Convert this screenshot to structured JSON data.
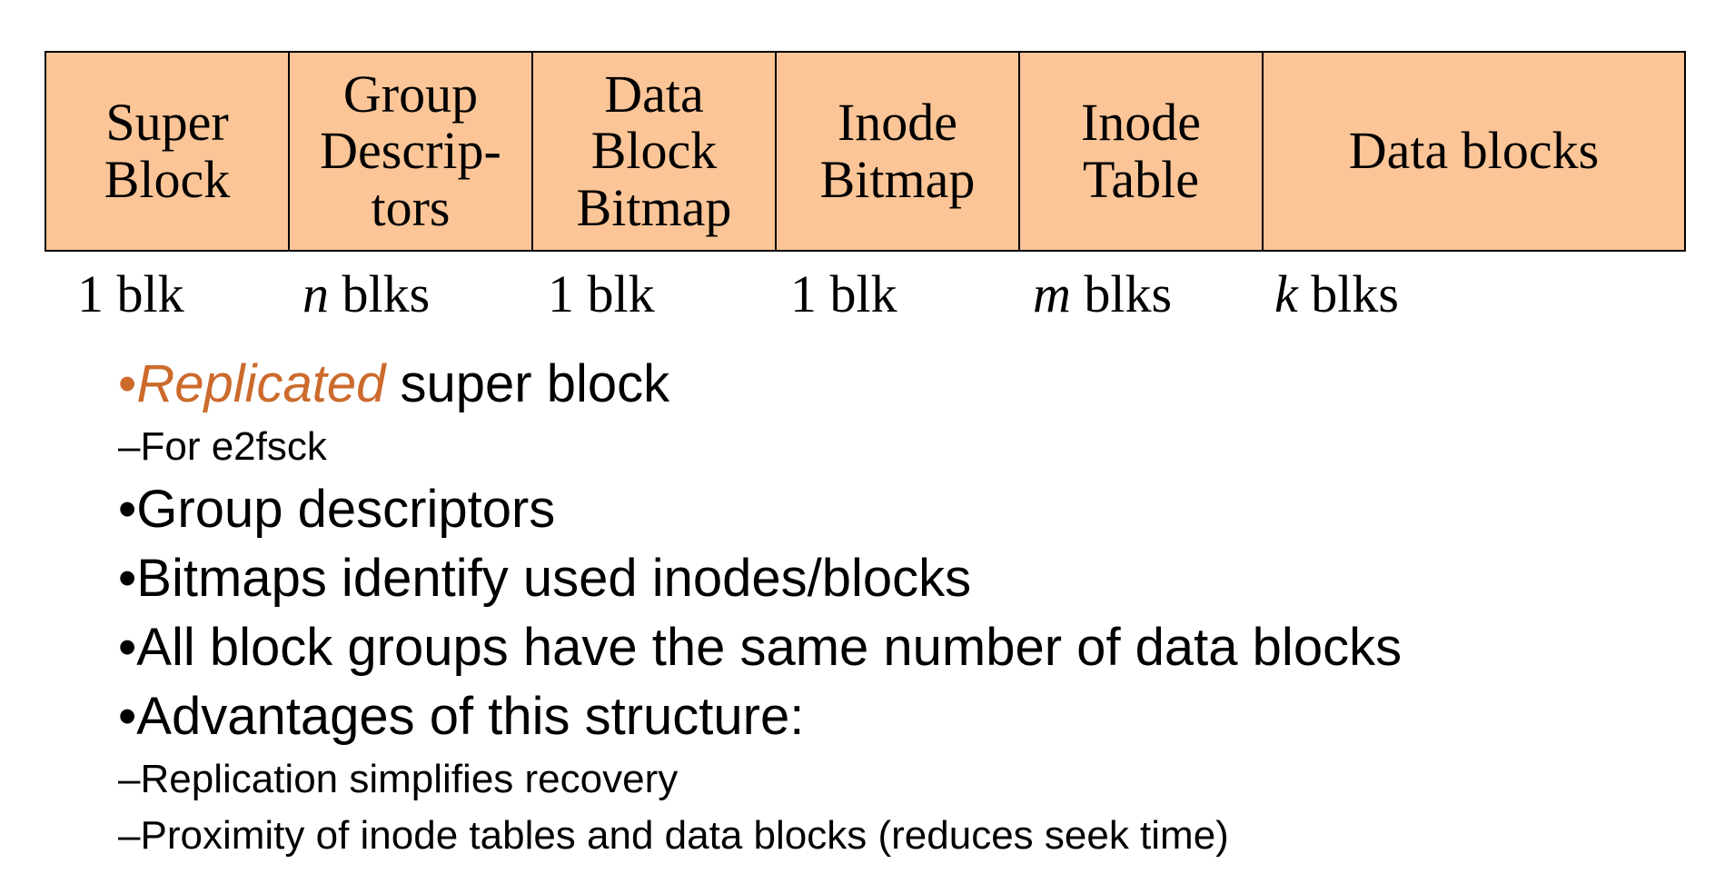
{
  "diagram": {
    "cells": [
      {
        "label": "Super\nBlock"
      },
      {
        "label": "Group\nDescrip-\ntors"
      },
      {
        "label": "Data\nBlock\nBitmap"
      },
      {
        "label": "Inode\nBitmap"
      },
      {
        "label": "Inode\nTable"
      },
      {
        "label": "Data blocks"
      }
    ],
    "counts": [
      {
        "var": "",
        "unit": "1 blk"
      },
      {
        "var": "n",
        "unit": " blks"
      },
      {
        "var": "",
        "unit": "1 blk"
      },
      {
        "var": "",
        "unit": "1 blk"
      },
      {
        "var": "m",
        "unit": " blks"
      },
      {
        "var": "k",
        "unit": " blks"
      }
    ],
    "cell_fill": "#fbc597"
  },
  "bullets": {
    "b1_bullet": "•",
    "b1_emph": "Replicated",
    "b1_rest": " super block",
    "b1_sub": "–For e2fsck",
    "b2": "•Group descriptors",
    "b3": "•Bitmaps identify used inodes/blocks",
    "b4": "•All block groups have the same number of data blocks",
    "b5": "•Advantages of this structure:",
    "b5_sub1": "–Replication simplifies recovery",
    "b5_sub2": "–Proximity of inode tables and data blocks (reduces seek time)"
  },
  "colors": {
    "accent": "#cc6a2c"
  }
}
